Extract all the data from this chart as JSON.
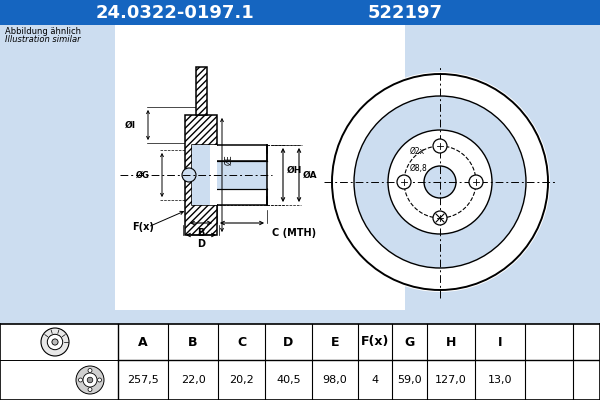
{
  "title_part1": "24.0322-0197.1",
  "title_part2": "522197",
  "title_bg": "#1565c0",
  "title_fg": "white",
  "subtitle1": "Abbildung ähnlich",
  "subtitle2": "Illustration similar",
  "bg_color": "#ccddf0",
  "table_headers": [
    "A",
    "B",
    "C",
    "D",
    "E",
    "F(x)",
    "G",
    "H",
    "I"
  ],
  "table_values": [
    "257,5",
    "22,0",
    "20,2",
    "40,5",
    "98,0",
    "4",
    "59,0",
    "127,0",
    "13,0"
  ],
  "hole_label1": "Ø2x",
  "hole_label2": "Ø8,8"
}
